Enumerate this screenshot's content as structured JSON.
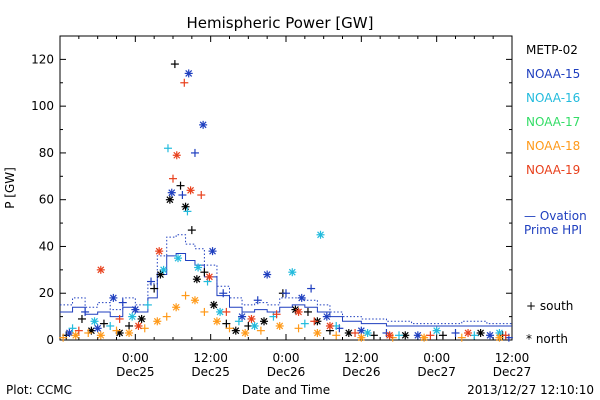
{
  "chart_data": {
    "type": "scatter",
    "title": "Hemispheric Power [GW]",
    "ylabel": "P [GW]",
    "xlabel": "Date and Time",
    "ylim": [
      0,
      130
    ],
    "xlim_hours_from_dec24_1200": [
      0,
      72
    ],
    "grid": false,
    "y_ticks": [
      "0",
      "20",
      "40",
      "60",
      "80",
      "100",
      "120"
    ],
    "x_ticks": [
      {
        "time": "0:00",
        "date": "Dec25"
      },
      {
        "time": "12:00",
        "date": "Dec25"
      },
      {
        "time": "0:00",
        "date": "Dec26"
      },
      {
        "time": "12:00",
        "date": "Dec26"
      },
      {
        "time": "0:00",
        "date": "Dec27"
      },
      {
        "time": "12:00",
        "date": "Dec27"
      }
    ],
    "legend": {
      "placement": "right",
      "entries": [
        {
          "name": "METP-02",
          "color": "#000000"
        },
        {
          "name": "NOAA-15",
          "color": "#1f3fbf"
        },
        {
          "name": "NOAA-16",
          "color": "#22bbdd"
        },
        {
          "name": "NOAA-17",
          "color": "#33dd66"
        },
        {
          "name": "NOAA-18",
          "color": "#ff9a1a"
        },
        {
          "name": "NOAA-19",
          "color": "#e8401c"
        }
      ]
    },
    "ovation_label": [
      "— Ovation",
      "Prime HPI"
    ],
    "ovation_color": "#1f3fbf",
    "symbols": {
      "south": "+ south",
      "north": "* north"
    },
    "series": [
      {
        "name": "METP-02",
        "color": "#000000",
        "points": [
          {
            "t": 1.0,
            "v": 2,
            "s": "+"
          },
          {
            "t": 3.5,
            "v": 9,
            "s": "+"
          },
          {
            "t": 5.0,
            "v": 4,
            "s": "*"
          },
          {
            "t": 7.0,
            "v": 7,
            "s": "+"
          },
          {
            "t": 9.5,
            "v": 3,
            "s": "*"
          },
          {
            "t": 11.0,
            "v": 6,
            "s": "+"
          },
          {
            "t": 13.0,
            "v": 9,
            "s": "*"
          },
          {
            "t": 15.0,
            "v": 22,
            "s": "+"
          },
          {
            "t": 16.0,
            "v": 28,
            "s": "*"
          },
          {
            "t": 17.5,
            "v": 60,
            "s": "*"
          },
          {
            "t": 18.3,
            "v": 118,
            "s": "+"
          },
          {
            "t": 19.2,
            "v": 66,
            "s": "+"
          },
          {
            "t": 20.0,
            "v": 57,
            "s": "*"
          },
          {
            "t": 21.0,
            "v": 47,
            "s": "+"
          },
          {
            "t": 21.8,
            "v": 26,
            "s": "*"
          },
          {
            "t": 23.0,
            "v": 29,
            "s": "+"
          },
          {
            "t": 24.5,
            "v": 15,
            "s": "*"
          },
          {
            "t": 26.5,
            "v": 7,
            "s": "+"
          },
          {
            "t": 28.0,
            "v": 4,
            "s": "*"
          },
          {
            "t": 30.0,
            "v": 6,
            "s": "+"
          },
          {
            "t": 32.5,
            "v": 8,
            "s": "*"
          },
          {
            "t": 35.5,
            "v": 20,
            "s": "+"
          },
          {
            "t": 37.5,
            "v": 13,
            "s": "*"
          },
          {
            "t": 39.5,
            "v": 12,
            "s": "+"
          },
          {
            "t": 41.0,
            "v": 8,
            "s": "*"
          },
          {
            "t": 43.0,
            "v": 4,
            "s": "+"
          },
          {
            "t": 46.0,
            "v": 3,
            "s": "*"
          },
          {
            "t": 50.0,
            "v": 2,
            "s": "+"
          },
          {
            "t": 55.0,
            "v": 2,
            "s": "*"
          },
          {
            "t": 61.0,
            "v": 2,
            "s": "+"
          },
          {
            "t": 67.0,
            "v": 3,
            "s": "*"
          },
          {
            "t": 70.5,
            "v": 2,
            "s": "+"
          }
        ]
      },
      {
        "name": "NOAA-15",
        "color": "#1f3fbf",
        "points": [
          {
            "t": 1.5,
            "v": 3,
            "s": "*"
          },
          {
            "t": 4.0,
            "v": 12,
            "s": "+"
          },
          {
            "t": 6.0,
            "v": 5,
            "s": "*"
          },
          {
            "t": 8.5,
            "v": 18,
            "s": "*"
          },
          {
            "t": 10.0,
            "v": 16,
            "s": "+"
          },
          {
            "t": 12.0,
            "v": 13,
            "s": "*"
          },
          {
            "t": 14.5,
            "v": 25,
            "s": "+"
          },
          {
            "t": 17.8,
            "v": 63,
            "s": "*"
          },
          {
            "t": 19.5,
            "v": 62,
            "s": "+"
          },
          {
            "t": 20.5,
            "v": 114,
            "s": "*"
          },
          {
            "t": 21.5,
            "v": 80,
            "s": "+"
          },
          {
            "t": 22.8,
            "v": 92,
            "s": "*"
          },
          {
            "t": 24.3,
            "v": 38,
            "s": "*"
          },
          {
            "t": 26.0,
            "v": 20,
            "s": "+"
          },
          {
            "t": 29.0,
            "v": 10,
            "s": "*"
          },
          {
            "t": 31.5,
            "v": 17,
            "s": "+"
          },
          {
            "t": 33.0,
            "v": 28,
            "s": "*"
          },
          {
            "t": 36.0,
            "v": 20,
            "s": "+"
          },
          {
            "t": 38.5,
            "v": 18,
            "s": "*"
          },
          {
            "t": 40.0,
            "v": 22,
            "s": "+"
          },
          {
            "t": 42.5,
            "v": 10,
            "s": "*"
          },
          {
            "t": 44.5,
            "v": 5,
            "s": "+"
          },
          {
            "t": 48.0,
            "v": 4,
            "s": "*"
          },
          {
            "t": 52.0,
            "v": 3,
            "s": "+"
          },
          {
            "t": 57.0,
            "v": 2,
            "s": "*"
          },
          {
            "t": 63.0,
            "v": 3,
            "s": "+"
          },
          {
            "t": 68.5,
            "v": 2,
            "s": "*"
          },
          {
            "t": 71.5,
            "v": 1,
            "s": "+"
          }
        ]
      },
      {
        "name": "NOAA-16",
        "color": "#22bbdd",
        "points": [
          {
            "t": 2.0,
            "v": 5,
            "s": "+"
          },
          {
            "t": 5.5,
            "v": 8,
            "s": "*"
          },
          {
            "t": 8.0,
            "v": 6,
            "s": "+"
          },
          {
            "t": 11.5,
            "v": 10,
            "s": "*"
          },
          {
            "t": 14.0,
            "v": 15,
            "s": "+"
          },
          {
            "t": 16.5,
            "v": 30,
            "s": "*"
          },
          {
            "t": 17.2,
            "v": 82,
            "s": "+"
          },
          {
            "t": 18.8,
            "v": 35,
            "s": "*"
          },
          {
            "t": 20.3,
            "v": 55,
            "s": "+"
          },
          {
            "t": 22.0,
            "v": 31,
            "s": "*"
          },
          {
            "t": 23.5,
            "v": 25,
            "s": "+"
          },
          {
            "t": 25.5,
            "v": 12,
            "s": "*"
          },
          {
            "t": 28.5,
            "v": 8,
            "s": "+"
          },
          {
            "t": 31.0,
            "v": 6,
            "s": "*"
          },
          {
            "t": 34.0,
            "v": 10,
            "s": "+"
          },
          {
            "t": 37.0,
            "v": 29,
            "s": "*"
          },
          {
            "t": 39.0,
            "v": 7,
            "s": "+"
          },
          {
            "t": 41.5,
            "v": 45,
            "s": "*"
          },
          {
            "t": 44.0,
            "v": 6,
            "s": "+"
          },
          {
            "t": 49.0,
            "v": 3,
            "s": "*"
          },
          {
            "t": 54.0,
            "v": 2,
            "s": "+"
          },
          {
            "t": 60.0,
            "v": 4,
            "s": "*"
          },
          {
            "t": 66.0,
            "v": 2,
            "s": "+"
          },
          {
            "t": 70.0,
            "v": 3,
            "s": "*"
          }
        ]
      },
      {
        "name": "NOAA-18",
        "color": "#ff9a1a",
        "points": [
          {
            "t": 0.5,
            "v": 1,
            "s": "+"
          },
          {
            "t": 2.5,
            "v": 2,
            "s": "*"
          },
          {
            "t": 4.5,
            "v": 3,
            "s": "+"
          },
          {
            "t": 6.5,
            "v": 2,
            "s": "*"
          },
          {
            "t": 9.0,
            "v": 4,
            "s": "+"
          },
          {
            "t": 11.0,
            "v": 3,
            "s": "*"
          },
          {
            "t": 13.5,
            "v": 5,
            "s": "+"
          },
          {
            "t": 15.5,
            "v": 8,
            "s": "*"
          },
          {
            "t": 17.0,
            "v": 10,
            "s": "+"
          },
          {
            "t": 18.5,
            "v": 14,
            "s": "*"
          },
          {
            "t": 20.0,
            "v": 19,
            "s": "+"
          },
          {
            "t": 21.5,
            "v": 17,
            "s": "*"
          },
          {
            "t": 23.0,
            "v": 12,
            "s": "+"
          },
          {
            "t": 25.0,
            "v": 8,
            "s": "*"
          },
          {
            "t": 27.0,
            "v": 5,
            "s": "+"
          },
          {
            "t": 29.5,
            "v": 3,
            "s": "*"
          },
          {
            "t": 32.0,
            "v": 4,
            "s": "+"
          },
          {
            "t": 35.0,
            "v": 6,
            "s": "*"
          },
          {
            "t": 38.0,
            "v": 5,
            "s": "+"
          },
          {
            "t": 41.0,
            "v": 3,
            "s": "*"
          },
          {
            "t": 44.0,
            "v": 2,
            "s": "+"
          },
          {
            "t": 48.0,
            "v": 1,
            "s": "*"
          },
          {
            "t": 53.0,
            "v": 1,
            "s": "+"
          },
          {
            "t": 58.0,
            "v": 1,
            "s": "*"
          },
          {
            "t": 64.0,
            "v": 1,
            "s": "+"
          },
          {
            "t": 70.0,
            "v": 1,
            "s": "*"
          }
        ]
      },
      {
        "name": "NOAA-19",
        "color": "#e8401c",
        "points": [
          {
            "t": 3.0,
            "v": 4,
            "s": "+"
          },
          {
            "t": 6.5,
            "v": 30,
            "s": "*"
          },
          {
            "t": 9.5,
            "v": 9,
            "s": "+"
          },
          {
            "t": 12.5,
            "v": 6,
            "s": "*"
          },
          {
            "t": 15.8,
            "v": 38,
            "s": "*"
          },
          {
            "t": 18.0,
            "v": 69,
            "s": "+"
          },
          {
            "t": 18.6,
            "v": 79,
            "s": "*"
          },
          {
            "t": 19.8,
            "v": 110,
            "s": "+"
          },
          {
            "t": 20.8,
            "v": 64,
            "s": "*"
          },
          {
            "t": 22.5,
            "v": 62,
            "s": "+"
          },
          {
            "t": 23.8,
            "v": 27,
            "s": "*"
          },
          {
            "t": 26.5,
            "v": 12,
            "s": "+"
          },
          {
            "t": 30.5,
            "v": 9,
            "s": "*"
          },
          {
            "t": 34.5,
            "v": 11,
            "s": "+"
          },
          {
            "t": 38.0,
            "v": 12,
            "s": "*"
          },
          {
            "t": 40.5,
            "v": 8,
            "s": "+"
          },
          {
            "t": 43.0,
            "v": 6,
            "s": "*"
          },
          {
            "t": 47.0,
            "v": 3,
            "s": "+"
          },
          {
            "t": 52.5,
            "v": 2,
            "s": "*"
          },
          {
            "t": 59.0,
            "v": 2,
            "s": "+"
          },
          {
            "t": 65.0,
            "v": 3,
            "s": "*"
          },
          {
            "t": 71.0,
            "v": 2,
            "s": "+"
          }
        ]
      },
      {
        "name": "Ovation Prime HPI (south)",
        "color": "#1f3fbf",
        "line": "dotted",
        "points": [
          {
            "t": 0,
            "v": 15
          },
          {
            "t": 2,
            "v": 18
          },
          {
            "t": 4,
            "v": 14
          },
          {
            "t": 6,
            "v": 16
          },
          {
            "t": 8,
            "v": 13
          },
          {
            "t": 10,
            "v": 18
          },
          {
            "t": 12,
            "v": 15
          },
          {
            "t": 14,
            "v": 24
          },
          {
            "t": 15.5,
            "v": 36
          },
          {
            "t": 17,
            "v": 44
          },
          {
            "t": 18.5,
            "v": 45
          },
          {
            "t": 20,
            "v": 41
          },
          {
            "t": 21.5,
            "v": 39
          },
          {
            "t": 23,
            "v": 32
          },
          {
            "t": 25,
            "v": 23
          },
          {
            "t": 27,
            "v": 18
          },
          {
            "t": 29,
            "v": 15
          },
          {
            "t": 31,
            "v": 16
          },
          {
            "t": 33,
            "v": 15
          },
          {
            "t": 35,
            "v": 18
          },
          {
            "t": 37,
            "v": 18
          },
          {
            "t": 39,
            "v": 17
          },
          {
            "t": 41,
            "v": 15
          },
          {
            "t": 43,
            "v": 12
          },
          {
            "t": 45,
            "v": 10
          },
          {
            "t": 48,
            "v": 9
          },
          {
            "t": 52,
            "v": 8
          },
          {
            "t": 56,
            "v": 7
          },
          {
            "t": 60,
            "v": 7
          },
          {
            "t": 64,
            "v": 8
          },
          {
            "t": 68,
            "v": 7
          },
          {
            "t": 72,
            "v": 7
          }
        ]
      },
      {
        "name": "Ovation Prime HPI (north)",
        "color": "#1f3fbf",
        "line": "solid",
        "points": [
          {
            "t": 0,
            "v": 12
          },
          {
            "t": 2,
            "v": 14
          },
          {
            "t": 4,
            "v": 11
          },
          {
            "t": 6,
            "v": 12
          },
          {
            "t": 8,
            "v": 10
          },
          {
            "t": 10,
            "v": 14
          },
          {
            "t": 12,
            "v": 12
          },
          {
            "t": 14,
            "v": 18
          },
          {
            "t": 15.5,
            "v": 28
          },
          {
            "t": 17,
            "v": 36
          },
          {
            "t": 18.5,
            "v": 37
          },
          {
            "t": 20,
            "v": 34
          },
          {
            "t": 21.5,
            "v": 32
          },
          {
            "t": 23,
            "v": 27
          },
          {
            "t": 25,
            "v": 19
          },
          {
            "t": 27,
            "v": 14
          },
          {
            "t": 29,
            "v": 12
          },
          {
            "t": 31,
            "v": 13
          },
          {
            "t": 33,
            "v": 12
          },
          {
            "t": 35,
            "v": 14
          },
          {
            "t": 37,
            "v": 15
          },
          {
            "t": 39,
            "v": 14
          },
          {
            "t": 41,
            "v": 12
          },
          {
            "t": 43,
            "v": 10
          },
          {
            "t": 45,
            "v": 8
          },
          {
            "t": 48,
            "v": 7
          },
          {
            "t": 52,
            "v": 6
          },
          {
            "t": 56,
            "v": 6
          },
          {
            "t": 60,
            "v": 6
          },
          {
            "t": 64,
            "v": 6
          },
          {
            "t": 68,
            "v": 6
          },
          {
            "t": 72,
            "v": 6
          }
        ]
      }
    ]
  },
  "footer": {
    "left": "Plot: CCMC",
    "right": "2013/12/27 12:10:10"
  }
}
